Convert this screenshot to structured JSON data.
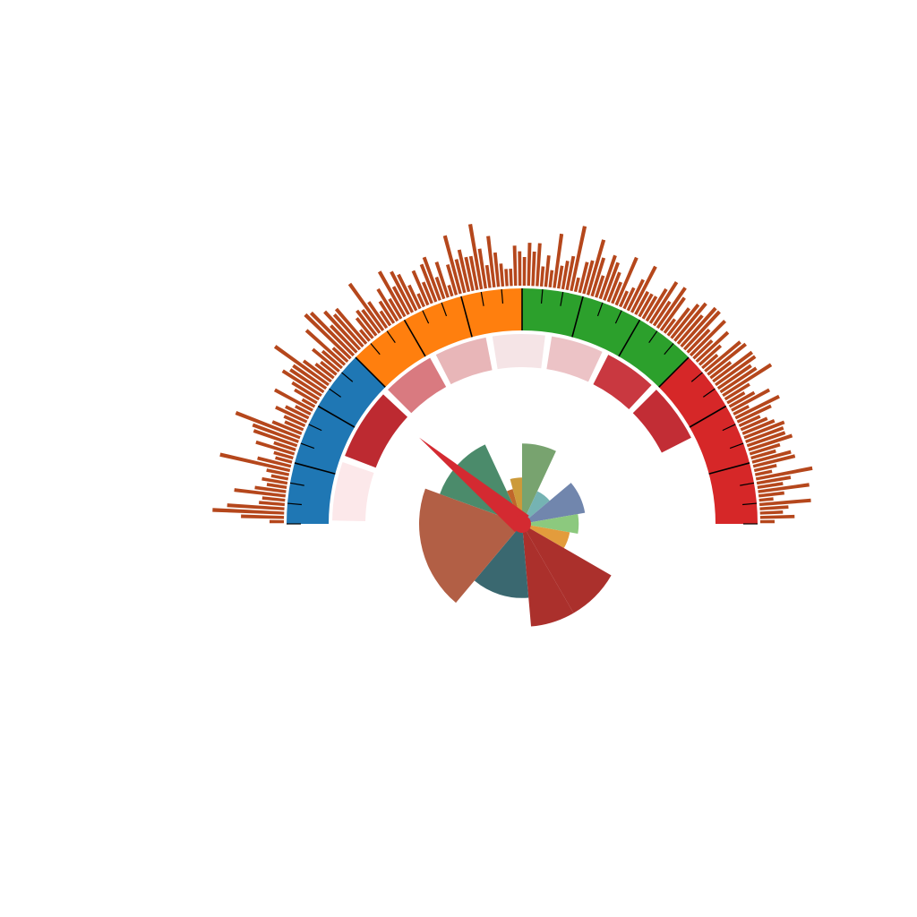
{
  "chart_data": {
    "type": "gauge",
    "title": "",
    "needle_angle_deg": 40,
    "gauge_range_deg": [
      0,
      180
    ],
    "outer_bands": [
      {
        "start": 0,
        "end": 45,
        "color": "#1f77b4"
      },
      {
        "start": 45,
        "end": 90,
        "color": "#ff7f0e"
      },
      {
        "start": 90,
        "end": 135,
        "color": "#2ca02c"
      },
      {
        "start": 135,
        "end": 180,
        "color": "#d62728"
      }
    ],
    "ticks": {
      "major_step_deg": 15,
      "minor_step_deg": 5,
      "color": "#000000"
    },
    "middle_segments": [
      {
        "start": 1,
        "end": 19,
        "color": "#fce8ea"
      },
      {
        "start": 21,
        "end": 43,
        "color": "#bd2a31"
      },
      {
        "start": 45,
        "end": 61,
        "color": "#d97a80"
      },
      {
        "start": 63,
        "end": 79,
        "color": "#e8b6b8"
      },
      {
        "start": 81,
        "end": 97,
        "color": "#f5e4e6"
      },
      {
        "start": 99,
        "end": 115,
        "color": "#ecc3c6"
      },
      {
        "start": 117,
        "end": 133,
        "color": "#c93840"
      },
      {
        "start": 135,
        "end": 153,
        "color": "#c22d35"
      }
    ],
    "outer_bars": {
      "color": "#b5471c",
      "values": [
        0.5,
        1.5,
        2.5,
        2,
        0.9,
        0.8,
        1.8,
        1.1,
        0.7,
        0.9,
        0.6,
        0.8,
        2.5,
        1.2,
        0.6,
        0.7,
        1.4,
        0.8,
        1.6,
        1.7,
        2.4,
        1.1,
        0.7,
        0.8,
        1.2,
        0.9,
        0.6,
        1.5,
        0.5,
        0.9,
        1.1,
        1.6,
        1.4,
        1.4,
        2.3,
        1.2,
        0.8,
        0.7,
        1.2,
        0.9,
        1.8,
        0.7,
        2.2,
        2.1,
        1.3,
        1.8,
        1.5,
        1.6,
        0.5,
        0.9,
        1.1,
        1.0,
        2.0,
        1.1,
        0.6,
        0.9,
        1.3,
        0.8,
        1.8,
        1.1,
        1.6,
        1.4,
        0.9,
        0.5,
        1.3,
        0.8,
        1.4,
        1.6,
        0.8,
        1.3,
        0.4,
        1.1,
        2.1,
        1.2,
        1.5,
        1.2,
        1.2,
        2.3,
        1.4,
        0.8,
        1.8,
        1.2,
        0.8,
        0.6,
        0.6,
        1.4,
        1.2,
        1.0,
        1.5,
        1.2,
        1.5,
        0.7,
        1.1,
        0.6,
        1.9,
        0.8,
        1.0,
        1.2,
        2.3,
        0.5,
        1.1,
        1.2,
        2.0,
        1.4,
        0.8,
        1.6,
        1.4,
        1.1,
        0.8,
        1.8,
        0.6,
        0.8,
        1.2,
        1.8,
        0.9,
        0.9,
        0.9,
        1.3,
        1.7,
        1.0,
        1.7,
        1.4,
        0.6,
        1.2,
        1.5,
        1.7,
        1.3,
        1.8,
        1.8,
        1.1,
        1.7,
        0.9,
        1.5,
        1.0,
        0.7,
        1.6,
        1.7,
        0.9,
        1.7,
        1.7,
        1.4,
        1.5,
        2.0,
        1.0,
        0.7,
        1.0,
        1.5,
        0.6,
        1.7,
        1.3,
        0.8,
        1.0,
        1.2,
        1.5,
        1.4,
        1.4,
        1.6,
        1.1,
        0.9,
        1.4,
        1.5,
        0.8,
        0.6,
        2.0,
        1.2,
        0.9,
        1.8,
        0.9,
        0.5,
        1.8,
        1.0,
        0.8,
        1.2,
        0.5
      ]
    },
    "inner_rose": [
      {
        "start": 0,
        "end": 25,
        "value": 0.78,
        "color": "#78a36f"
      },
      {
        "start": 25,
        "end": 50,
        "value": 0.35,
        "color": "#75b3b3"
      },
      {
        "start": 50,
        "end": 80,
        "value": 0.62,
        "color": "#7186ad"
      },
      {
        "start": 80,
        "end": 100,
        "value": 0.55,
        "color": "#8cc97e"
      },
      {
        "start": 100,
        "end": 120,
        "value": 0.47,
        "color": "#e39c3c"
      },
      {
        "start": 120,
        "end": 150,
        "value": 1.0,
        "color": "#ab302c"
      },
      {
        "start": 150,
        "end": 175,
        "value": 1.0,
        "color": "#ab302c"
      },
      {
        "start": 175,
        "end": 220,
        "value": 0.72,
        "color": "#3a6870"
      },
      {
        "start": 220,
        "end": 290,
        "value": 1.0,
        "color": "#b25f45"
      },
      {
        "start": 290,
        "end": 335,
        "value": 0.85,
        "color": "#4b8b6b"
      },
      {
        "start": 335,
        "end": 345,
        "value": 0.35,
        "color": "#c0662b"
      },
      {
        "start": 345,
        "end": 360,
        "value": 0.45,
        "color": "#cc9a3a"
      }
    ],
    "needle_color": "#d42a31"
  }
}
